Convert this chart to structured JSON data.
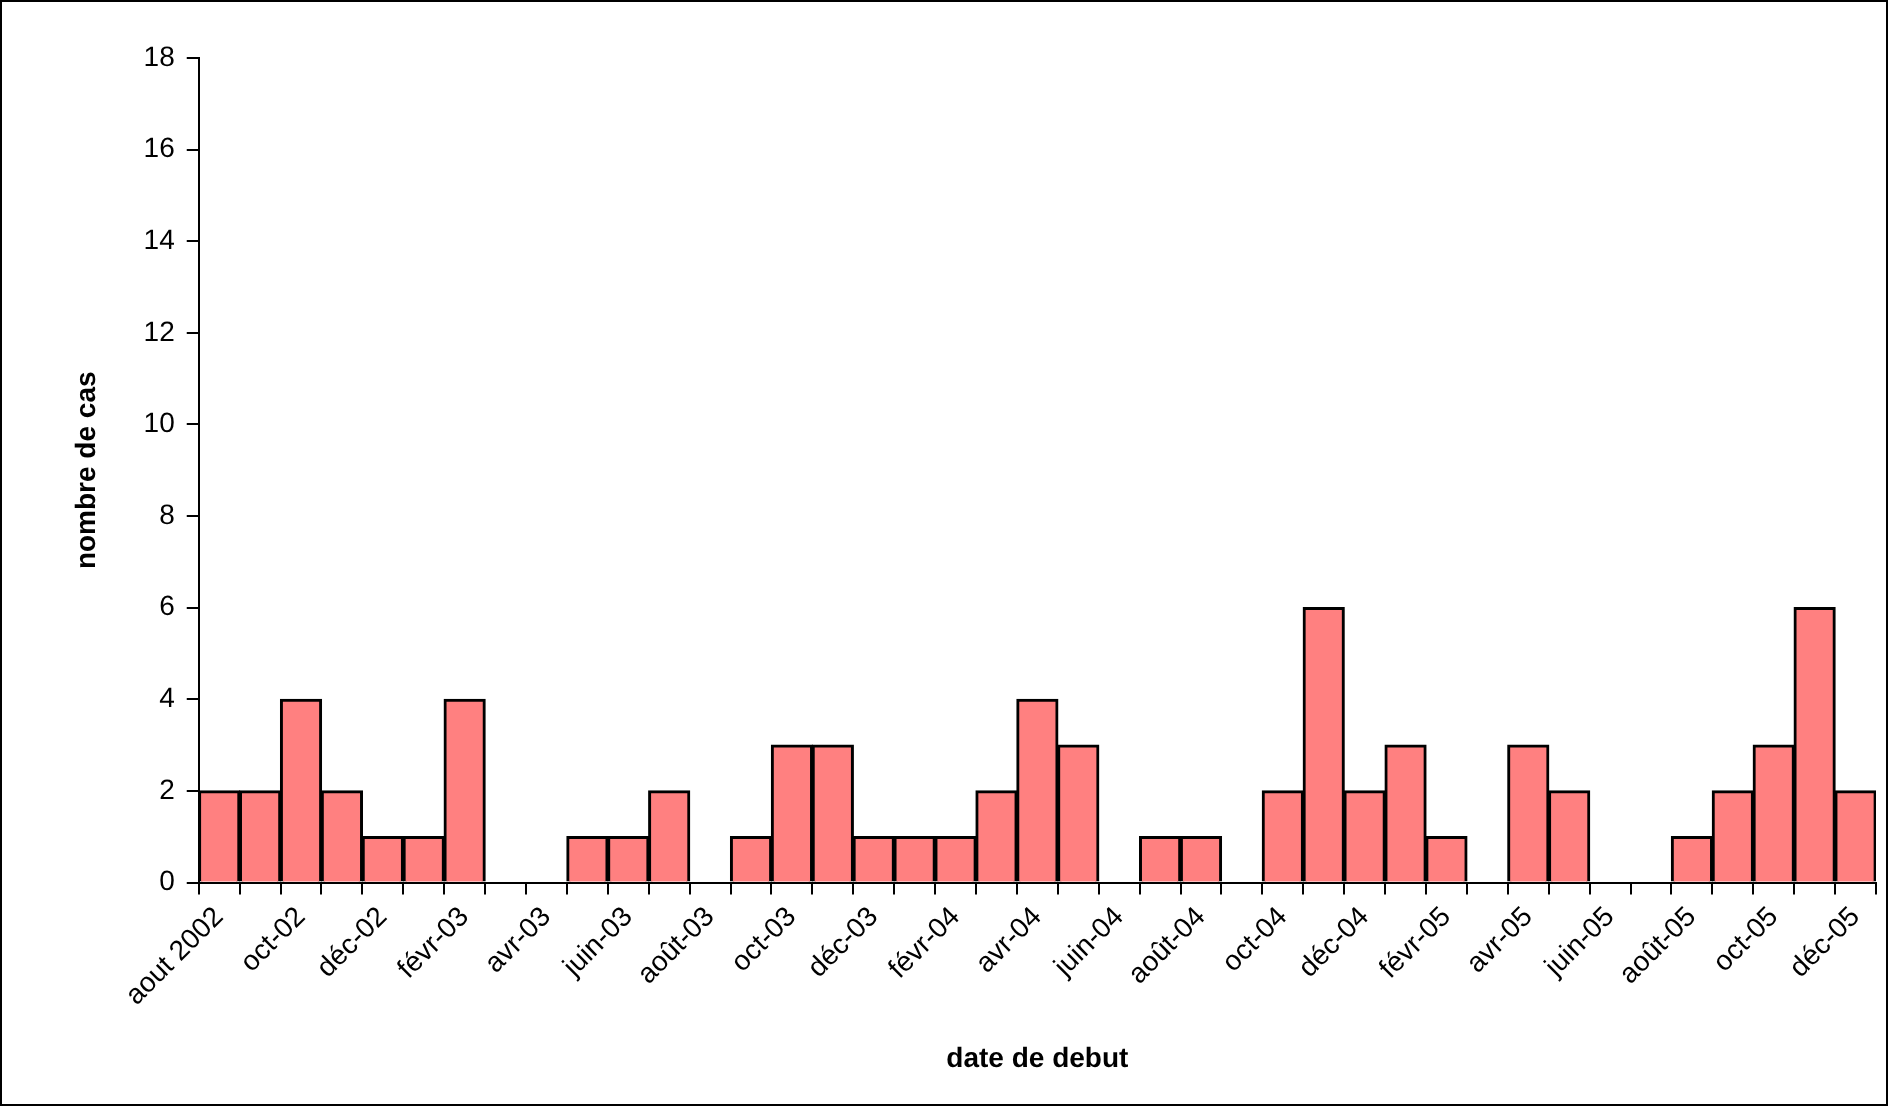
{
  "chart_data": {
    "type": "bar",
    "xlabel": "date de debut",
    "ylabel": "nombre de cas",
    "categories": [
      "aout 2002",
      null,
      "oct-02",
      null,
      "déc-02",
      null,
      "févr-03",
      null,
      "avr-03",
      null,
      "juin-03",
      null,
      "août-03",
      null,
      "oct-03",
      null,
      "déc-03",
      null,
      "févr-04",
      null,
      "avr-04",
      null,
      "juin-04",
      null,
      "août-04",
      null,
      "oct-04",
      null,
      "déc-04",
      null,
      "févr-05",
      null,
      "avr-05",
      null,
      "juin-05",
      null,
      "août-05",
      null,
      "oct-05",
      null,
      "déc-05"
    ],
    "values": [
      2,
      2,
      4,
      2,
      1,
      1,
      4,
      0,
      0,
      1,
      1,
      2,
      0,
      1,
      3,
      3,
      1,
      1,
      1,
      2,
      4,
      3,
      0,
      1,
      1,
      0,
      2,
      6,
      2,
      3,
      1,
      0,
      3,
      2,
      0,
      0,
      1,
      2,
      3,
      6,
      2
    ],
    "color": "#ff8080",
    "ylim": [
      0,
      18
    ],
    "yticks": [
      0,
      2,
      4,
      6,
      8,
      10,
      12,
      14,
      16,
      18
    ],
    "grid": false,
    "legend": false
  }
}
